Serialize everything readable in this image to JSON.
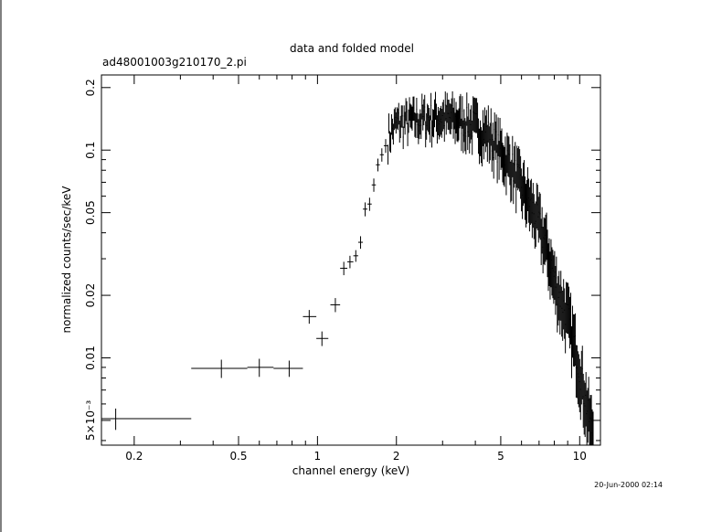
{
  "chart_data": {
    "type": "scatter",
    "title": "data and folded model",
    "subtitle": "ad48001003g210170_2.pi",
    "xlabel": "channel energy (keV)",
    "ylabel": "normalized counts/sec/keV",
    "timestamp": "20-Jun-2000 02:14",
    "xscale": "log",
    "yscale": "log",
    "xlim": [
      0.15,
      12.0
    ],
    "ylim": [
      0.0038,
      0.23
    ],
    "x_ticks": [
      {
        "v": 0.2,
        "label": "0.2"
      },
      {
        "v": 0.5,
        "label": "0.5"
      },
      {
        "v": 1,
        "label": "1"
      },
      {
        "v": 2,
        "label": "2"
      },
      {
        "v": 5,
        "label": "5"
      },
      {
        "v": 10,
        "label": "10"
      }
    ],
    "y_ticks": [
      {
        "v": 0.005,
        "label": "5×10⁻³"
      },
      {
        "v": 0.01,
        "label": "0.01"
      },
      {
        "v": 0.02,
        "label": "0.02"
      },
      {
        "v": 0.05,
        "label": "0.05"
      },
      {
        "v": 0.1,
        "label": "0.1"
      },
      {
        "v": 0.2,
        "label": "0.2"
      }
    ],
    "points": [
      {
        "x": 0.17,
        "xlo": 0.15,
        "xhi": 0.33,
        "y": 0.0051,
        "yerr": 0.0006
      },
      {
        "x": 0.43,
        "xlo": 0.33,
        "xhi": 0.54,
        "y": 0.0089,
        "yerr": 0.0009
      },
      {
        "x": 0.6,
        "xlo": 0.54,
        "xhi": 0.68,
        "y": 0.009,
        "yerr": 0.0009
      },
      {
        "x": 0.78,
        "xlo": 0.68,
        "xhi": 0.88,
        "y": 0.0089,
        "yerr": 0.0008
      },
      {
        "x": 0.93,
        "xlo": 0.88,
        "xhi": 0.99,
        "y": 0.0158,
        "yerr": 0.0012
      },
      {
        "x": 1.04,
        "xlo": 0.99,
        "xhi": 1.1,
        "y": 0.0124,
        "yerr": 0.001
      },
      {
        "x": 1.17,
        "xlo": 1.12,
        "xhi": 1.22,
        "y": 0.018,
        "yerr": 0.0014
      },
      {
        "x": 1.26,
        "xlo": 1.22,
        "xhi": 1.3,
        "y": 0.027,
        "yerr": 0.002
      },
      {
        "x": 1.33,
        "xlo": 1.3,
        "xhi": 1.37,
        "y": 0.029,
        "yerr": 0.002
      },
      {
        "x": 1.4,
        "xlo": 1.37,
        "xhi": 1.43,
        "y": 0.031,
        "yerr": 0.002
      },
      {
        "x": 1.46,
        "xlo": 1.43,
        "xhi": 1.49,
        "y": 0.036,
        "yerr": 0.0025
      },
      {
        "x": 1.52,
        "xlo": 1.49,
        "xhi": 1.55,
        "y": 0.052,
        "yerr": 0.004
      },
      {
        "x": 1.58,
        "xlo": 1.55,
        "xhi": 1.61,
        "y": 0.055,
        "yerr": 0.004
      },
      {
        "x": 1.64,
        "xlo": 1.61,
        "xhi": 1.67,
        "y": 0.068,
        "yerr": 0.005
      },
      {
        "x": 1.7,
        "xlo": 1.67,
        "xhi": 1.73,
        "y": 0.085,
        "yerr": 0.006
      },
      {
        "x": 1.76,
        "xlo": 1.73,
        "xhi": 1.79,
        "y": 0.095,
        "yerr": 0.007
      },
      {
        "x": 1.82,
        "xlo": 1.79,
        "xhi": 1.85,
        "y": 0.105,
        "yerr": 0.008
      }
    ],
    "dense_segment": {
      "x_start": 1.85,
      "x_end": 11.3,
      "n_bins": 230,
      "curve": [
        {
          "x": 1.85,
          "y": 0.115
        },
        {
          "x": 2.0,
          "y": 0.135
        },
        {
          "x": 2.5,
          "y": 0.142
        },
        {
          "x": 3.0,
          "y": 0.145
        },
        {
          "x": 3.5,
          "y": 0.14
        },
        {
          "x": 4.0,
          "y": 0.132
        },
        {
          "x": 4.5,
          "y": 0.12
        },
        {
          "x": 5.0,
          "y": 0.1
        },
        {
          "x": 5.5,
          "y": 0.085
        },
        {
          "x": 6.0,
          "y": 0.068
        },
        {
          "x": 6.5,
          "y": 0.055
        },
        {
          "x": 7.0,
          "y": 0.045
        },
        {
          "x": 7.5,
          "y": 0.034
        },
        {
          "x": 8.0,
          "y": 0.024
        },
        {
          "x": 8.5,
          "y": 0.019
        },
        {
          "x": 9.0,
          "y": 0.016
        },
        {
          "x": 9.5,
          "y": 0.012
        },
        {
          "x": 10.0,
          "y": 0.009
        },
        {
          "x": 10.5,
          "y": 0.0065
        },
        {
          "x": 11.0,
          "y": 0.0048
        },
        {
          "x": 11.3,
          "y": 0.0043
        }
      ],
      "rel_err_low": 0.11,
      "rel_err_high": 0.3
    }
  }
}
